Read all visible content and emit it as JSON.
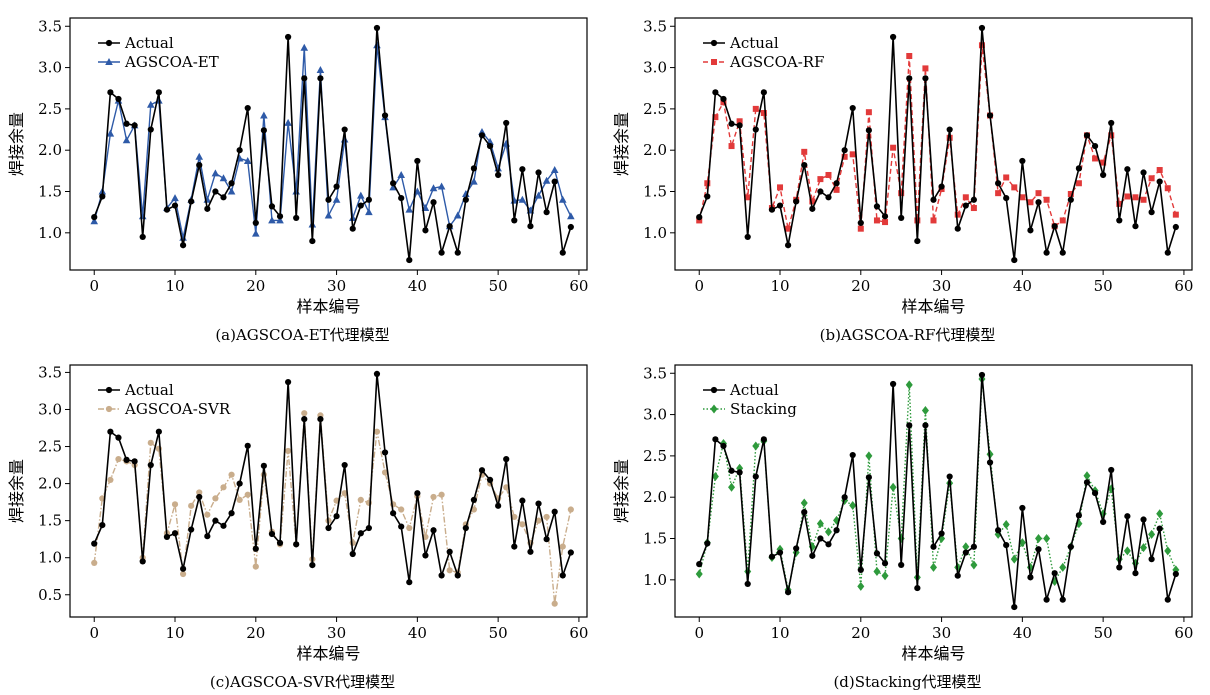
{
  "figure": {
    "panels": [
      "a",
      "b",
      "c",
      "d"
    ]
  },
  "chart_data": [
    {
      "id": "a",
      "type": "line",
      "caption": "(a)AGSCOA-ET代理模型",
      "xlabel": "样本编号",
      "ylabel": "焊接余量",
      "xlim": [
        -3,
        61
      ],
      "ylim": [
        0.55,
        3.6
      ],
      "xticks": [
        0,
        10,
        20,
        30,
        40,
        50,
        60
      ],
      "yticks": [
        1.0,
        1.5,
        2.0,
        2.5,
        3.0,
        3.5
      ],
      "legend_position": "top-left",
      "x": [
        0,
        1,
        2,
        3,
        4,
        5,
        6,
        7,
        8,
        9,
        10,
        11,
        12,
        13,
        14,
        15,
        16,
        17,
        18,
        19,
        20,
        21,
        22,
        23,
        24,
        25,
        26,
        27,
        28,
        29,
        30,
        31,
        32,
        33,
        34,
        35,
        36,
        37,
        38,
        39,
        40,
        41,
        42,
        43,
        44,
        45,
        46,
        47,
        48,
        49,
        50,
        51,
        52,
        53,
        54,
        55,
        56,
        57,
        58,
        59
      ],
      "series": [
        {
          "name": "Actual",
          "color": "#000000",
          "marker": "circle",
          "dash": "solid",
          "values": [
            1.19,
            1.44,
            2.7,
            2.62,
            2.32,
            2.3,
            0.95,
            2.25,
            2.7,
            1.28,
            1.33,
            0.85,
            1.38,
            1.82,
            1.29,
            1.5,
            1.43,
            1.6,
            2.0,
            2.51,
            1.12,
            2.24,
            1.32,
            1.2,
            3.37,
            1.18,
            2.87,
            0.9,
            2.87,
            1.4,
            1.56,
            2.25,
            1.05,
            1.33,
            1.4,
            3.48,
            2.42,
            1.6,
            1.42,
            0.67,
            1.87,
            1.03,
            1.37,
            0.76,
            1.08,
            0.76,
            1.4,
            1.78,
            2.18,
            2.05,
            1.7,
            2.33,
            1.15,
            1.77,
            1.08,
            1.73,
            1.25,
            1.62,
            0.76,
            1.07
          ]
        },
        {
          "name": "AGSCOA-ET",
          "color": "#2e5aa8",
          "marker": "triangle",
          "dash": "solid",
          "values": [
            1.14,
            1.5,
            2.2,
            2.6,
            2.12,
            2.3,
            1.2,
            2.55,
            2.6,
            1.3,
            1.42,
            0.94,
            1.4,
            1.92,
            1.4,
            1.72,
            1.66,
            1.5,
            1.9,
            1.87,
            0.99,
            2.42,
            1.15,
            1.15,
            2.33,
            1.5,
            3.24,
            1.1,
            2.97,
            1.21,
            1.4,
            2.13,
            1.18,
            1.45,
            1.25,
            3.27,
            2.4,
            1.55,
            1.7,
            1.28,
            1.5,
            1.3,
            1.54,
            1.56,
            1.08,
            1.21,
            1.47,
            1.62,
            2.22,
            2.1,
            1.78,
            2.08,
            1.39,
            1.4,
            1.27,
            1.45,
            1.63,
            1.76,
            1.4,
            1.2
          ]
        }
      ]
    },
    {
      "id": "b",
      "type": "line",
      "caption": "(b)AGSCOA-RF代理模型",
      "xlabel": "样本编号",
      "ylabel": "焊接余量",
      "xlim": [
        -3,
        61
      ],
      "ylim": [
        0.55,
        3.6
      ],
      "xticks": [
        0,
        10,
        20,
        30,
        40,
        50,
        60
      ],
      "yticks": [
        1.0,
        1.5,
        2.0,
        2.5,
        3.0,
        3.5
      ],
      "legend_position": "top-left",
      "x": [
        0,
        1,
        2,
        3,
        4,
        5,
        6,
        7,
        8,
        9,
        10,
        11,
        12,
        13,
        14,
        15,
        16,
        17,
        18,
        19,
        20,
        21,
        22,
        23,
        24,
        25,
        26,
        27,
        28,
        29,
        30,
        31,
        32,
        33,
        34,
        35,
        36,
        37,
        38,
        39,
        40,
        41,
        42,
        43,
        44,
        45,
        46,
        47,
        48,
        49,
        50,
        51,
        52,
        53,
        54,
        55,
        56,
        57,
        58,
        59
      ],
      "series": [
        {
          "name": "Actual",
          "color": "#000000",
          "marker": "circle",
          "dash": "solid",
          "values": [
            1.19,
            1.44,
            2.7,
            2.62,
            2.32,
            2.3,
            0.95,
            2.25,
            2.7,
            1.28,
            1.33,
            0.85,
            1.38,
            1.82,
            1.29,
            1.5,
            1.43,
            1.6,
            2.0,
            2.51,
            1.12,
            2.24,
            1.32,
            1.2,
            3.37,
            1.18,
            2.87,
            0.9,
            2.87,
            1.4,
            1.56,
            2.25,
            1.05,
            1.33,
            1.4,
            3.48,
            2.42,
            1.6,
            1.42,
            0.67,
            1.87,
            1.03,
            1.37,
            0.76,
            1.08,
            0.76,
            1.4,
            1.78,
            2.18,
            2.05,
            1.7,
            2.33,
            1.15,
            1.77,
            1.08,
            1.73,
            1.25,
            1.62,
            0.76,
            1.07
          ]
        },
        {
          "name": "AGSCOA-RF",
          "color": "#e23a3a",
          "marker": "square",
          "dash": "dashed",
          "values": [
            1.15,
            1.6,
            2.4,
            2.58,
            2.05,
            2.35,
            1.43,
            2.5,
            2.45,
            1.3,
            1.55,
            1.05,
            1.4,
            1.98,
            1.38,
            1.65,
            1.7,
            1.52,
            1.92,
            1.95,
            1.05,
            2.46,
            1.15,
            1.13,
            2.03,
            1.48,
            3.14,
            1.15,
            2.99,
            1.15,
            1.53,
            2.15,
            1.22,
            1.43,
            1.3,
            3.27,
            2.42,
            1.48,
            1.67,
            1.55,
            1.43,
            1.37,
            1.48,
            1.4,
            1.08,
            1.15,
            1.47,
            1.6,
            2.18,
            1.9,
            1.85,
            2.18,
            1.35,
            1.44,
            1.43,
            1.4,
            1.66,
            1.76,
            1.54,
            1.22
          ]
        }
      ]
    },
    {
      "id": "c",
      "type": "line",
      "caption": "(c)AGSCOA-SVR代理模型",
      "xlabel": "样本编号",
      "ylabel": "焊接余量",
      "xlim": [
        -3,
        61
      ],
      "ylim": [
        0.2,
        3.6
      ],
      "xticks": [
        0,
        10,
        20,
        30,
        40,
        50,
        60
      ],
      "yticks": [
        0.5,
        1.0,
        1.5,
        2.0,
        2.5,
        3.0,
        3.5
      ],
      "legend_position": "top-left",
      "x": [
        0,
        1,
        2,
        3,
        4,
        5,
        6,
        7,
        8,
        9,
        10,
        11,
        12,
        13,
        14,
        15,
        16,
        17,
        18,
        19,
        20,
        21,
        22,
        23,
        24,
        25,
        26,
        27,
        28,
        29,
        30,
        31,
        32,
        33,
        34,
        35,
        36,
        37,
        38,
        39,
        40,
        41,
        42,
        43,
        44,
        45,
        46,
        47,
        48,
        49,
        50,
        51,
        52,
        53,
        54,
        55,
        56,
        57,
        58,
        59
      ],
      "series": [
        {
          "name": "Actual",
          "color": "#000000",
          "marker": "circle",
          "dash": "solid",
          "values": [
            1.19,
            1.44,
            2.7,
            2.62,
            2.32,
            2.3,
            0.95,
            2.25,
            2.7,
            1.28,
            1.33,
            0.85,
            1.38,
            1.82,
            1.29,
            1.5,
            1.43,
            1.6,
            2.0,
            2.51,
            1.12,
            2.24,
            1.32,
            1.2,
            3.37,
            1.18,
            2.87,
            0.9,
            2.87,
            1.4,
            1.56,
            2.25,
            1.05,
            1.33,
            1.4,
            3.48,
            2.42,
            1.6,
            1.42,
            0.67,
            1.87,
            1.03,
            1.37,
            0.76,
            1.08,
            0.76,
            1.4,
            1.78,
            2.18,
            2.05,
            1.7,
            2.33,
            1.15,
            1.77,
            1.08,
            1.73,
            1.25,
            1.62,
            0.76,
            1.07
          ]
        },
        {
          "name": "AGSCOA-SVR",
          "color": "#c9ad8c",
          "marker": "circle",
          "dash": "dashdot",
          "values": [
            0.93,
            1.8,
            2.05,
            2.33,
            2.3,
            2.25,
            1.0,
            2.55,
            2.47,
            1.33,
            1.72,
            0.78,
            1.7,
            1.88,
            1.58,
            1.8,
            1.95,
            2.12,
            1.78,
            1.85,
            0.88,
            2.12,
            1.35,
            1.18,
            2.44,
            1.18,
            2.95,
            0.98,
            2.92,
            1.5,
            1.77,
            1.87,
            1.2,
            1.78,
            1.74,
            2.7,
            2.15,
            1.72,
            1.65,
            1.4,
            1.83,
            1.28,
            1.82,
            1.85,
            0.83,
            0.8,
            1.45,
            1.65,
            2.12,
            2.0,
            1.8,
            1.95,
            1.55,
            1.45,
            1.2,
            1.5,
            1.55,
            0.38,
            1.15,
            1.65
          ]
        }
      ]
    },
    {
      "id": "d",
      "type": "line",
      "caption": "(d)Stacking代理模型",
      "xlabel": "样本编号",
      "ylabel": "焊接余量",
      "xlim": [
        -3,
        61
      ],
      "ylim": [
        0.55,
        3.6
      ],
      "xticks": [
        0,
        10,
        20,
        30,
        40,
        50,
        60
      ],
      "yticks": [
        1.0,
        1.5,
        2.0,
        2.5,
        3.0,
        3.5
      ],
      "legend_position": "top-left",
      "x": [
        0,
        1,
        2,
        3,
        4,
        5,
        6,
        7,
        8,
        9,
        10,
        11,
        12,
        13,
        14,
        15,
        16,
        17,
        18,
        19,
        20,
        21,
        22,
        23,
        24,
        25,
        26,
        27,
        28,
        29,
        30,
        31,
        32,
        33,
        34,
        35,
        36,
        37,
        38,
        39,
        40,
        41,
        42,
        43,
        44,
        45,
        46,
        47,
        48,
        49,
        50,
        51,
        52,
        53,
        54,
        55,
        56,
        57,
        58,
        59
      ],
      "series": [
        {
          "name": "Actual",
          "color": "#000000",
          "marker": "circle",
          "dash": "solid",
          "values": [
            1.19,
            1.44,
            2.7,
            2.62,
            2.32,
            2.3,
            0.95,
            2.25,
            2.7,
            1.28,
            1.33,
            0.85,
            1.38,
            1.82,
            1.29,
            1.5,
            1.43,
            1.6,
            2.0,
            2.51,
            1.12,
            2.24,
            1.32,
            1.2,
            3.37,
            1.18,
            2.87,
            0.9,
            2.87,
            1.4,
            1.56,
            2.25,
            1.05,
            1.33,
            1.4,
            3.48,
            2.42,
            1.6,
            1.42,
            0.67,
            1.87,
            1.03,
            1.37,
            0.76,
            1.08,
            0.76,
            1.4,
            1.78,
            2.18,
            2.05,
            1.7,
            2.33,
            1.15,
            1.77,
            1.08,
            1.73,
            1.25,
            1.62,
            0.76,
            1.07
          ]
        },
        {
          "name": "Stacking",
          "color": "#2e9a3c",
          "marker": "diamond",
          "dash": "dotted",
          "values": [
            1.07,
            1.45,
            2.25,
            2.65,
            2.12,
            2.35,
            1.1,
            2.62,
            2.68,
            1.27,
            1.37,
            0.88,
            1.33,
            1.93,
            1.4,
            1.68,
            1.58,
            1.72,
            1.96,
            1.9,
            0.92,
            2.5,
            1.1,
            1.05,
            2.12,
            1.5,
            3.36,
            1.03,
            3.05,
            1.15,
            1.5,
            2.17,
            1.15,
            1.4,
            1.18,
            3.43,
            2.52,
            1.55,
            1.67,
            1.25,
            1.45,
            1.15,
            1.5,
            1.5,
            0.98,
            1.15,
            1.4,
            1.68,
            2.26,
            2.08,
            1.8,
            2.1,
            1.25,
            1.35,
            1.2,
            1.39,
            1.55,
            1.8,
            1.35,
            1.12
          ]
        }
      ]
    }
  ]
}
